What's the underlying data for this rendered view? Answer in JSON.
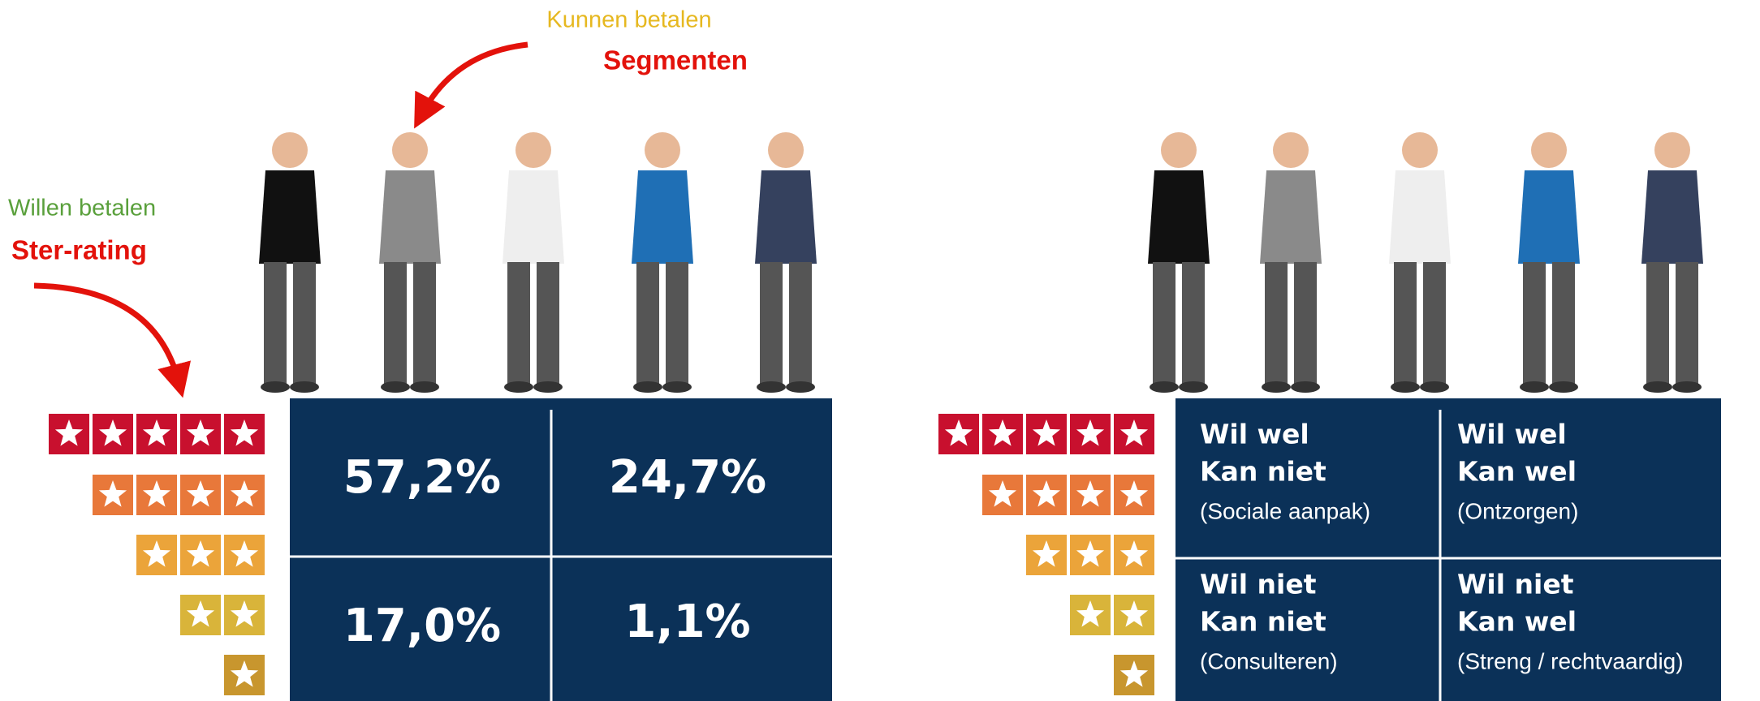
{
  "left": {
    "top_label": "Kunnen betalen",
    "top_title": "Segmenten",
    "side_label": "Willen betalen",
    "side_title": "Ster-rating",
    "cells": [
      [
        "57,2%",
        "24,7%"
      ],
      [
        "17,0%",
        "1,1%"
      ]
    ]
  },
  "right": {
    "cells": [
      [
        {
          "line1": "Wil wel",
          "line2": "Kan niet",
          "line3": "(Sociale aanpak)"
        },
        {
          "line1": "Wil wel",
          "line2": "Kan wel",
          "line3": "(Ontzorgen)"
        }
      ],
      [
        {
          "line1": "Wil niet",
          "line2": "Kan niet",
          "line3": "(Consulteren)"
        },
        {
          "line1": "Wil niet",
          "line2": "Kan wel",
          "line3": "(Streng / rechtvaardig)"
        }
      ]
    ]
  }
}
